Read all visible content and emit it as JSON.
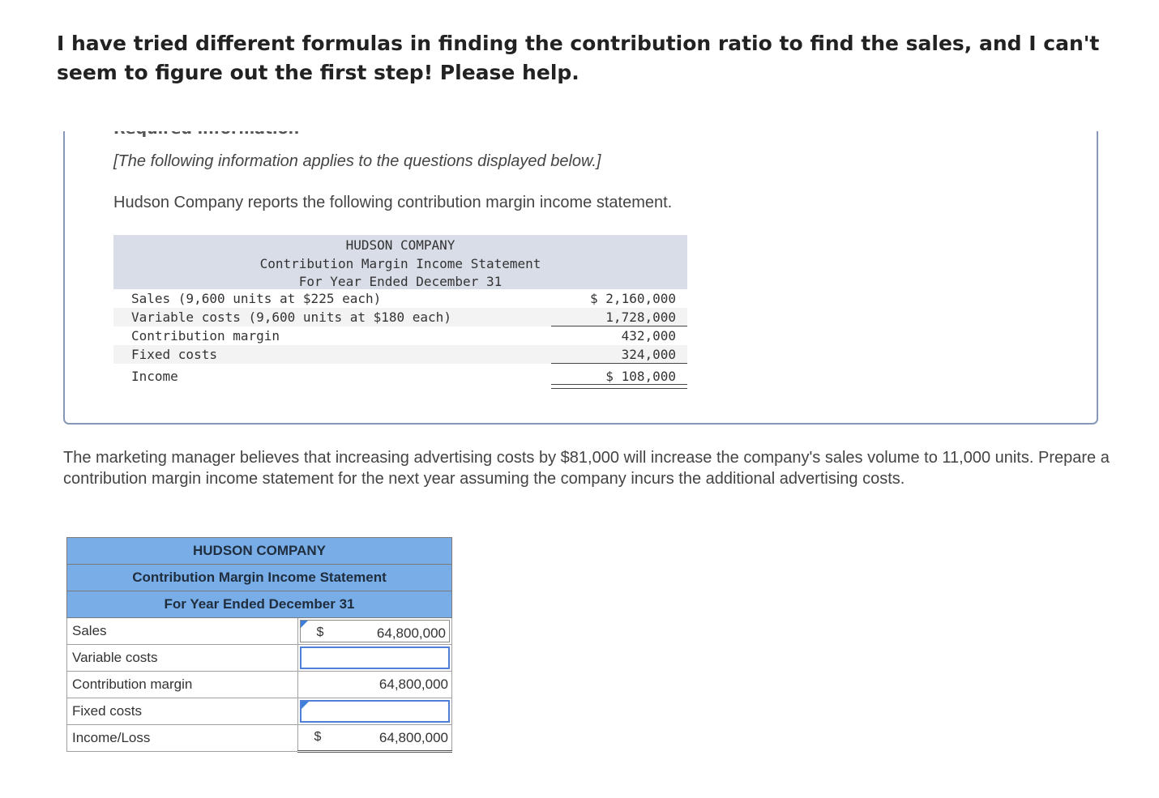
{
  "question": "I have tried different formulas in finding the contribution ratio to find the sales, and I can't seem to figure out the first step! Please help.",
  "info": {
    "heading_cut": "Required information",
    "note": "[The following information applies to the questions displayed below.]",
    "intro": "Hudson Company reports the following contribution margin income statement."
  },
  "statement": {
    "company": "HUDSON COMPANY",
    "title": "Contribution Margin Income Statement",
    "period": "For Year Ended December 31",
    "rows": [
      {
        "label": "Sales (9,600 units at $225 each)",
        "value": "$ 2,160,000"
      },
      {
        "label": "Variable costs (9,600 units at $180 each)",
        "value": "1,728,000"
      },
      {
        "label": "Contribution margin",
        "value": "432,000"
      },
      {
        "label": "Fixed costs",
        "value": "324,000"
      },
      {
        "label": "Income",
        "value": "$ 108,000"
      }
    ]
  },
  "prompt": "The marketing manager believes that increasing advertising costs by $81,000 will increase the company's sales volume to 11,000 units. Prepare a contribution margin income statement for the next year assuming the company incurs the additional advertising costs.",
  "answer": {
    "company": "HUDSON COMPANY",
    "title": "Contribution Margin Income Statement",
    "period": "For Year Ended December 31",
    "rows": [
      {
        "label": "Sales",
        "currency": "$",
        "value": "64,800,000"
      },
      {
        "label": "Variable costs",
        "currency": "",
        "value": ""
      },
      {
        "label": "Contribution margin",
        "currency": "",
        "value": "64,800,000"
      },
      {
        "label": "Fixed costs",
        "currency": "",
        "value": ""
      },
      {
        "label": "Income/Loss",
        "currency": "$",
        "value": "64,800,000"
      }
    ]
  }
}
